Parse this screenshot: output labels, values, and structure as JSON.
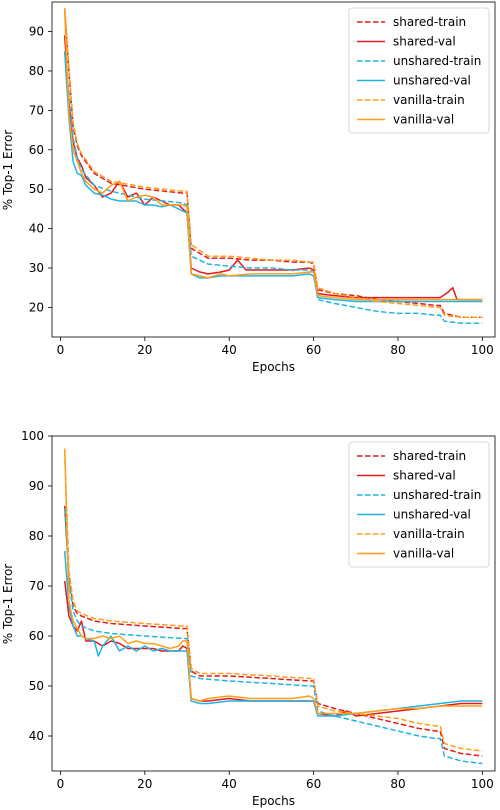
{
  "chart_data": [
    {
      "type": "line",
      "xlabel": "Epochs",
      "ylabel": "% Top-1 Error",
      "xlim": [
        -2,
        103
      ],
      "ylim": [
        12.5,
        97.5
      ],
      "xticks": [
        0,
        20,
        40,
        60,
        80,
        100
      ],
      "yticks": [
        20,
        30,
        40,
        50,
        60,
        70,
        80,
        90
      ],
      "grid": false,
      "legend": "top-right",
      "series": [
        {
          "name": "shared-train",
          "color": "#e41a1c",
          "style": "dashed",
          "x": [
            1,
            2,
            3,
            4,
            5,
            8,
            12,
            20,
            29,
            30,
            31,
            35,
            40,
            45,
            50,
            55,
            59,
            60,
            61,
            65,
            70,
            75,
            80,
            85,
            89,
            90,
            91,
            95,
            100
          ],
          "y": [
            95.5,
            80,
            66,
            61,
            58.5,
            54,
            51.5,
            50,
            49,
            49,
            35,
            32.5,
            32.5,
            32,
            32,
            31.5,
            31.5,
            31,
            24.5,
            23.5,
            23,
            22,
            21.5,
            21,
            20.5,
            20.5,
            18.5,
            17.5,
            17.5
          ]
        },
        {
          "name": "shared-val",
          "color": "#e41a1c",
          "style": "solid",
          "x": [
            1,
            2,
            3,
            4,
            5,
            6,
            8,
            10,
            12,
            14,
            16,
            18,
            20,
            22,
            24,
            26,
            28,
            29,
            30,
            31,
            33,
            35,
            38,
            40,
            42,
            44,
            46,
            50,
            55,
            59,
            60,
            61,
            65,
            70,
            75,
            80,
            85,
            90,
            92,
            93,
            94,
            95,
            100
          ],
          "y": [
            89,
            72,
            62,
            58,
            56,
            53,
            51,
            48,
            49,
            52,
            48,
            49,
            46,
            48,
            47,
            46,
            46,
            45,
            44,
            30,
            29,
            28.5,
            29,
            29.5,
            32,
            29.5,
            29.5,
            29.5,
            29.5,
            30,
            29.5,
            23.5,
            23,
            22.5,
            22.5,
            22.5,
            22.5,
            22.5,
            24,
            25,
            22,
            22,
            22
          ]
        },
        {
          "name": "unshared-train",
          "color": "#1fb4e8",
          "style": "dashed",
          "x": [
            1,
            2,
            3,
            4,
            5,
            8,
            12,
            20,
            29,
            30,
            31,
            35,
            40,
            45,
            50,
            55,
            59,
            60,
            61,
            65,
            70,
            75,
            80,
            85,
            89,
            90,
            91,
            95,
            100
          ],
          "y": [
            85,
            74,
            63,
            58,
            55,
            51,
            49.5,
            47.5,
            46.5,
            46,
            33,
            31,
            30.5,
            30,
            30,
            29.5,
            29.5,
            29,
            22,
            21,
            20,
            19,
            18.5,
            18.5,
            18,
            18,
            16.5,
            16,
            16
          ]
        },
        {
          "name": "unshared-val",
          "color": "#1fb4e8",
          "style": "solid",
          "x": [
            1,
            2,
            3,
            4,
            5,
            6,
            8,
            10,
            12,
            14,
            16,
            18,
            20,
            22,
            24,
            26,
            28,
            29,
            30,
            31,
            33,
            35,
            38,
            40,
            45,
            50,
            55,
            59,
            60,
            61,
            65,
            70,
            75,
            80,
            85,
            90,
            95,
            100
          ],
          "y": [
            85,
            68,
            57,
            54,
            53.5,
            51,
            49,
            48.5,
            47.5,
            47,
            47,
            47,
            46,
            46,
            45.5,
            46,
            45,
            44.5,
            44,
            28.5,
            27.5,
            27.5,
            28,
            28,
            28,
            28,
            28,
            28.5,
            28,
            22.5,
            22,
            21.5,
            21.5,
            21.5,
            21.5,
            21.5,
            21.5,
            21.5
          ]
        },
        {
          "name": "vanilla-train",
          "color": "#ff9f1a",
          "style": "dashed",
          "x": [
            1,
            2,
            3,
            4,
            5,
            8,
            12,
            20,
            29,
            30,
            31,
            35,
            40,
            45,
            50,
            55,
            59,
            60,
            61,
            65,
            70,
            75,
            80,
            85,
            89,
            90,
            91,
            95,
            100
          ],
          "y": [
            96,
            81,
            67,
            61.5,
            59,
            54.5,
            52,
            50.5,
            49.5,
            49.5,
            36,
            33,
            33,
            32.5,
            32,
            32,
            31.5,
            31.5,
            25,
            23.5,
            22.5,
            21.5,
            21,
            20.5,
            20,
            20,
            18,
            17.5,
            17.5
          ]
        },
        {
          "name": "vanilla-val",
          "color": "#ff9f1a",
          "style": "solid",
          "x": [
            1,
            2,
            3,
            4,
            5,
            6,
            8,
            10,
            12,
            14,
            16,
            18,
            20,
            22,
            24,
            26,
            28,
            29,
            30,
            31,
            33,
            35,
            38,
            40,
            45,
            50,
            55,
            59,
            60,
            61,
            65,
            70,
            75,
            80,
            85,
            90,
            95,
            100
          ],
          "y": [
            95,
            69,
            60,
            57,
            54,
            52,
            50,
            49,
            51,
            52,
            47,
            48,
            48.5,
            48,
            46,
            46,
            46,
            46,
            45.5,
            28.5,
            28,
            27.5,
            28.5,
            28,
            28.5,
            28.5,
            28.5,
            29,
            29,
            23,
            22.5,
            22,
            22,
            22,
            22,
            22,
            22,
            22
          ]
        }
      ]
    },
    {
      "type": "line",
      "xlabel": "Epochs",
      "ylabel": "% Top-1 Error",
      "xlim": [
        -2,
        103
      ],
      "ylim": [
        33,
        100
      ],
      "xticks": [
        0,
        20,
        40,
        60,
        80,
        100
      ],
      "yticks": [
        40,
        50,
        60,
        70,
        80,
        90,
        100
      ],
      "grid": false,
      "legend": "top-right",
      "series": [
        {
          "name": "shared-train",
          "color": "#e41a1c",
          "style": "dashed",
          "x": [
            1,
            2,
            3,
            4,
            5,
            8,
            12,
            20,
            29,
            30,
            31,
            33,
            40,
            50,
            59,
            60,
            61,
            65,
            70,
            75,
            80,
            85,
            89,
            90,
            91,
            95,
            100
          ],
          "y": [
            86,
            72,
            66,
            64.5,
            64,
            63,
            62.5,
            62,
            61.5,
            61.5,
            53,
            52,
            52,
            51.5,
            51,
            51,
            46.5,
            45.5,
            44.5,
            43.5,
            42.5,
            41.5,
            41,
            41,
            37.5,
            36.5,
            36
          ]
        },
        {
          "name": "shared-val",
          "color": "#e41a1c",
          "style": "solid",
          "x": [
            1,
            2,
            3,
            4,
            5,
            6,
            8,
            10,
            12,
            14,
            16,
            18,
            20,
            22,
            24,
            26,
            28,
            29,
            30,
            31,
            33,
            35,
            40,
            45,
            50,
            55,
            59,
            60,
            61,
            65,
            68,
            70,
            75,
            80,
            85,
            90,
            95,
            100
          ],
          "y": [
            71,
            64,
            62,
            61,
            63,
            59,
            59,
            58,
            59,
            58.5,
            57.5,
            57.5,
            57.5,
            57.5,
            57,
            57,
            57,
            58,
            57.5,
            47.5,
            47,
            47,
            47.5,
            47,
            47,
            47,
            47,
            47,
            44.5,
            44,
            45,
            44,
            44.5,
            45,
            45.5,
            46,
            46.5,
            46.5
          ]
        },
        {
          "name": "unshared-train",
          "color": "#1fb4e8",
          "style": "dashed",
          "x": [
            1,
            2,
            3,
            4,
            5,
            8,
            12,
            20,
            29,
            30,
            31,
            33,
            40,
            50,
            59,
            60,
            61,
            65,
            70,
            75,
            80,
            85,
            89,
            90,
            91,
            95,
            100
          ],
          "y": [
            85.5,
            71,
            65,
            63,
            62,
            61,
            60.5,
            60,
            59.5,
            59.5,
            52,
            51.5,
            51,
            50.5,
            50,
            50,
            45,
            44,
            43,
            42,
            41,
            40,
            39.5,
            39.5,
            36,
            35,
            34.5
          ]
        },
        {
          "name": "unshared-val",
          "color": "#1fb4e8",
          "style": "solid",
          "x": [
            1,
            2,
            3,
            4,
            5,
            6,
            8,
            9,
            10,
            12,
            14,
            16,
            18,
            20,
            22,
            24,
            26,
            28,
            29,
            30,
            31,
            33,
            35,
            40,
            45,
            50,
            55,
            59,
            60,
            61,
            65,
            70,
            75,
            80,
            85,
            90,
            95,
            100
          ],
          "y": [
            77,
            66,
            62,
            60,
            60,
            59.5,
            59,
            56,
            58,
            60,
            57,
            58,
            57,
            58,
            57,
            57.5,
            57,
            57,
            57,
            57,
            47,
            46.5,
            46.5,
            47,
            47,
            47,
            47,
            47,
            47,
            44,
            44,
            44.5,
            45,
            45.5,
            46,
            46.5,
            47,
            47
          ]
        },
        {
          "name": "vanilla-train",
          "color": "#ff9f1a",
          "style": "dashed",
          "x": [
            1,
            2,
            3,
            4,
            5,
            8,
            12,
            20,
            29,
            30,
            31,
            33,
            40,
            50,
            59,
            60,
            61,
            65,
            70,
            75,
            80,
            85,
            89,
            90,
            91,
            95,
            100
          ],
          "y": [
            97,
            73,
            67,
            65,
            64.5,
            63.5,
            63,
            62.5,
            62,
            62,
            53.5,
            52.5,
            52.5,
            52,
            51.5,
            51.5,
            46,
            45,
            44.5,
            44,
            43.5,
            42.5,
            42,
            42,
            38.5,
            37.5,
            37
          ]
        },
        {
          "name": "vanilla-val",
          "color": "#ff9f1a",
          "style": "solid",
          "x": [
            1,
            2,
            3,
            4,
            5,
            6,
            8,
            10,
            12,
            14,
            16,
            18,
            20,
            22,
            24,
            26,
            28,
            29,
            30,
            31,
            33,
            35,
            40,
            45,
            50,
            55,
            59,
            60,
            61,
            65,
            70,
            75,
            80,
            85,
            90,
            95,
            100
          ],
          "y": [
            97.5,
            67,
            63,
            61.5,
            60,
            59.5,
            59.5,
            60,
            59.5,
            60,
            58.5,
            59,
            58.5,
            58.5,
            58,
            57.5,
            58,
            59,
            59,
            47.5,
            47,
            47.5,
            48,
            47.5,
            47.5,
            47.5,
            48,
            47.5,
            44.5,
            44.5,
            44.5,
            45,
            45.5,
            45.5,
            46,
            46,
            46
          ]
        }
      ]
    }
  ]
}
